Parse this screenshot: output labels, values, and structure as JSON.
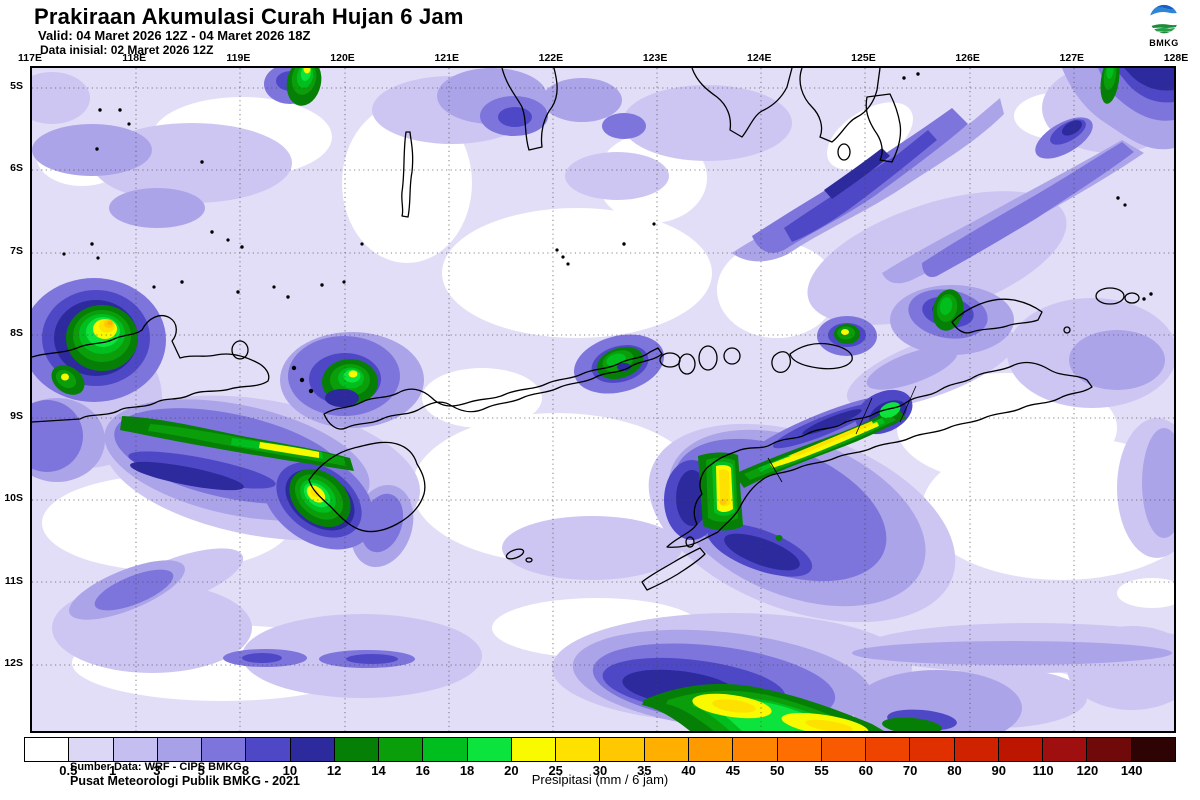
{
  "header": {
    "title": "Prakiraan Akumulasi Curah Hujan 6 Jam",
    "valid": "Valid: 04 Maret 2026 12Z - 04 Maret 2026 18Z",
    "initial": "Data inisial: 02 Maret 2026 12Z"
  },
  "logo": {
    "text": "BMKG"
  },
  "map": {
    "lon_labels": [
      "117E",
      "118E",
      "119E",
      "120E",
      "121E",
      "122E",
      "123E",
      "124E",
      "125E",
      "126E",
      "127E",
      "128E"
    ],
    "lat_labels": [
      "5S",
      "6S",
      "7S",
      "8S",
      "9S",
      "10S",
      "11S",
      "12S"
    ],
    "credits_line1": "Sumber Data: WRF - CIPS BMKG",
    "credits_line2": "Pusat Meteorologi Publik BMKG - 2021"
  },
  "legend": {
    "values": [
      "0.5",
      "1",
      "3",
      "5",
      "8",
      "10",
      "12",
      "14",
      "16",
      "18",
      "20",
      "25",
      "30",
      "35",
      "40",
      "45",
      "50",
      "55",
      "60",
      "70",
      "80",
      "90",
      "110",
      "120",
      "140"
    ],
    "colors": [
      "#FFFFFF",
      "#DCD7F5",
      "#C5BEF0",
      "#A9A1E8",
      "#7D75DB",
      "#4F48C6",
      "#2D2A9E",
      "#067F06",
      "#0A9E0A",
      "#00BE1E",
      "#0CE33C",
      "#F9F900",
      "#FFE100",
      "#FFC800",
      "#FFAF00",
      "#FF9900",
      "#FF8400",
      "#FF6E00",
      "#F75A00",
      "#EE4400",
      "#E03000",
      "#CF2200",
      "#BC1500",
      "#A00F0F",
      "#700909",
      "#2E0303"
    ],
    "title": "Presipitasi (mm / 6 jam)"
  }
}
